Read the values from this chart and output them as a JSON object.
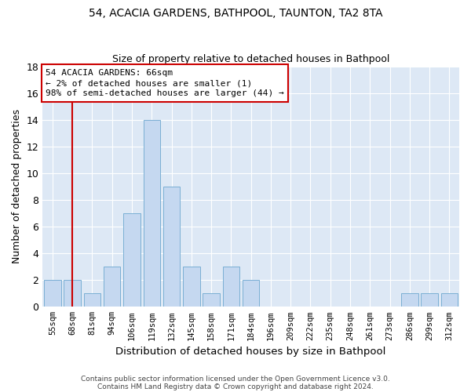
{
  "title1": "54, ACACIA GARDENS, BATHPOOL, TAUNTON, TA2 8TA",
  "title2": "Size of property relative to detached houses in Bathpool",
  "xlabel": "Distribution of detached houses by size in Bathpool",
  "ylabel": "Number of detached properties",
  "categories": [
    "55sqm",
    "68sqm",
    "81sqm",
    "94sqm",
    "106sqm",
    "119sqm",
    "132sqm",
    "145sqm",
    "158sqm",
    "171sqm",
    "184sqm",
    "196sqm",
    "209sqm",
    "222sqm",
    "235sqm",
    "248sqm",
    "261sqm",
    "273sqm",
    "286sqm",
    "299sqm",
    "312sqm"
  ],
  "values": [
    2,
    2,
    1,
    3,
    7,
    14,
    9,
    3,
    1,
    3,
    2,
    0,
    0,
    0,
    0,
    0,
    0,
    0,
    1,
    1,
    1
  ],
  "bar_color": "#c5d8f0",
  "bar_edge_color": "#7aafd4",
  "vline_color": "#cc0000",
  "annotation_text": "54 ACACIA GARDENS: 66sqm\n← 2% of detached houses are smaller (1)\n98% of semi-detached houses are larger (44) →",
  "annotation_box_color": "white",
  "annotation_box_edge_color": "#cc0000",
  "ylim": [
    0,
    18
  ],
  "yticks": [
    0,
    2,
    4,
    6,
    8,
    10,
    12,
    14,
    16,
    18
  ],
  "bg_color": "#dde8f5",
  "footnote1": "Contains HM Land Registry data © Crown copyright and database right 2024.",
  "footnote2": "Contains public sector information licensed under the Open Government Licence v3.0."
}
